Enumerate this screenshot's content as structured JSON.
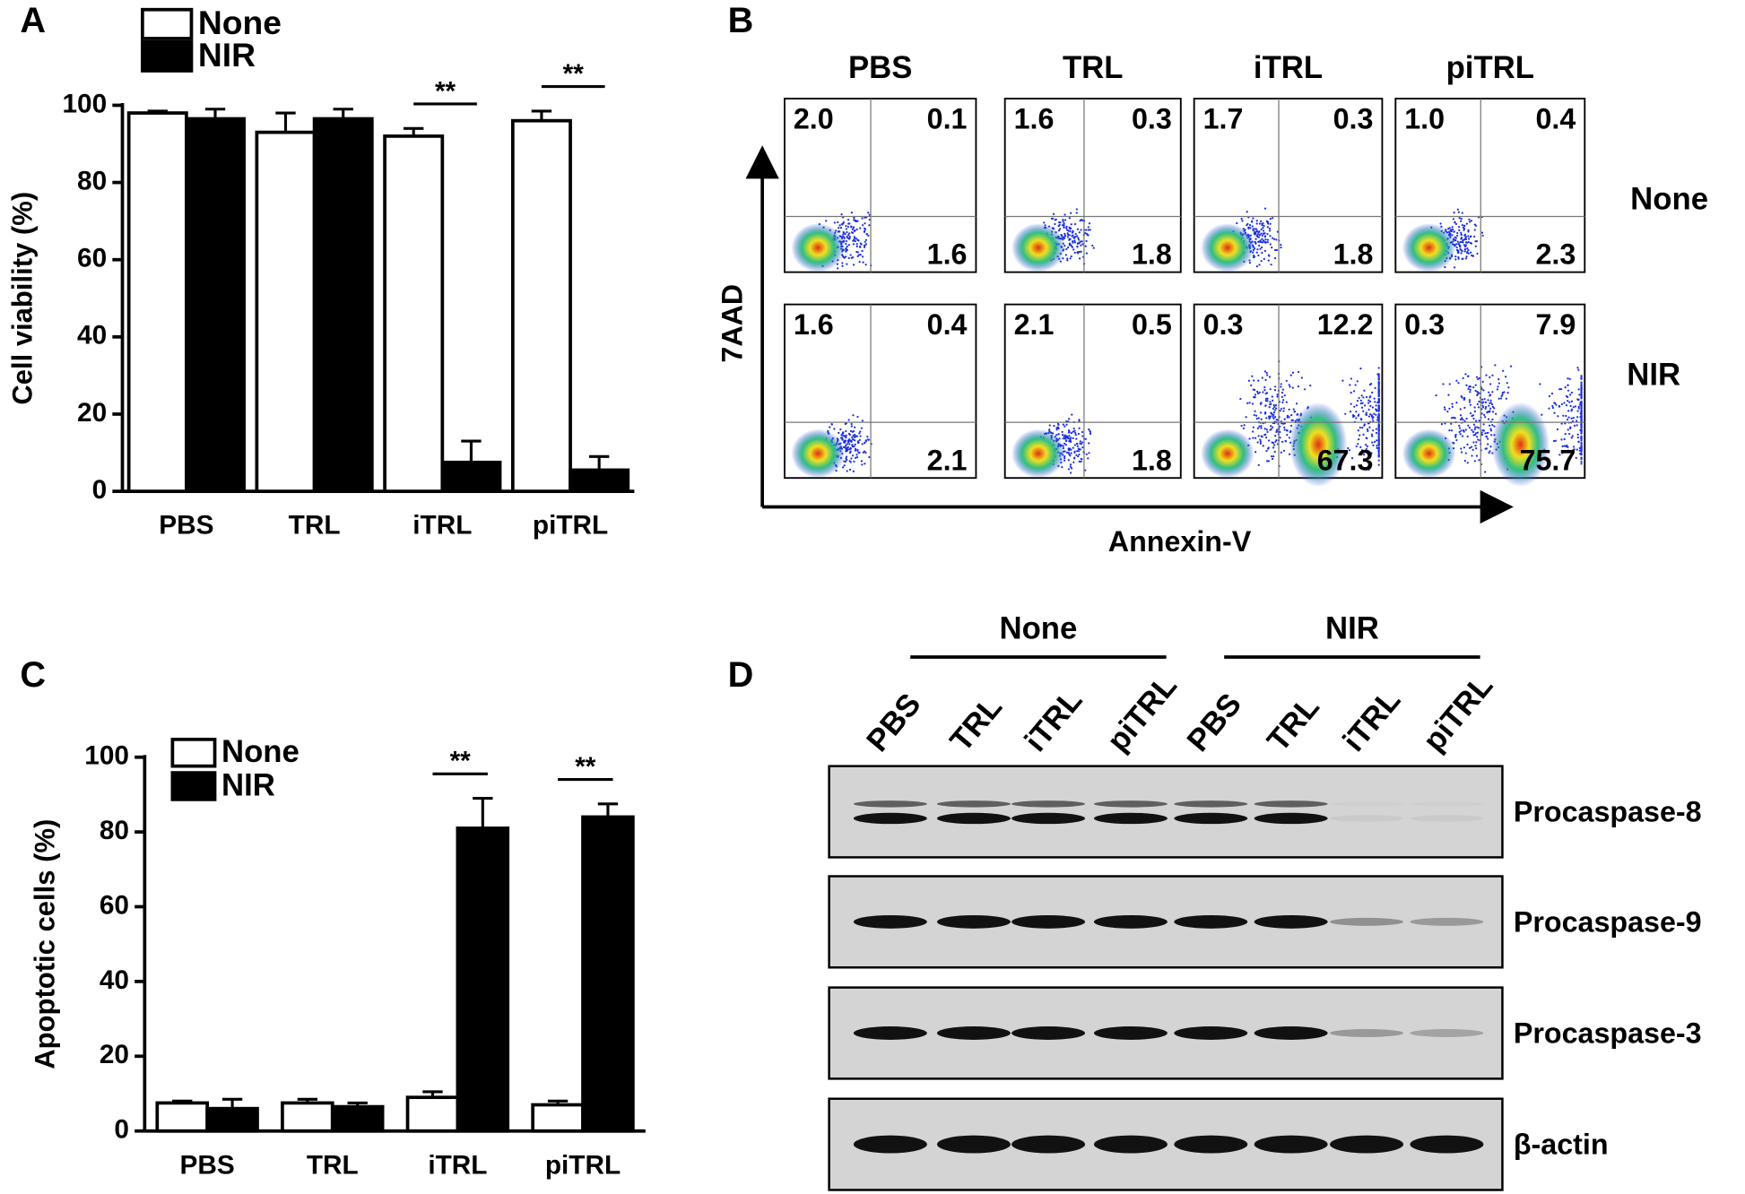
{
  "chart_data": [
    {
      "type": "bar",
      "panel_label": "A",
      "y_label": "Cell viability (%)",
      "categories": [
        "PBS",
        "TRL",
        "iTRL",
        "piTRL"
      ],
      "series": [
        {
          "name": "None",
          "color": "#ffffff",
          "values": [
            98,
            93,
            92,
            96
          ],
          "errors": [
            0.5,
            5,
            2,
            2.5
          ]
        },
        {
          "name": "NIR",
          "color": "#000000",
          "values": [
            96.5,
            96.5,
            7.5,
            5.5
          ],
          "errors": [
            2.5,
            2.5,
            5.5,
            3.5
          ]
        }
      ],
      "annotations": [
        null,
        null,
        "**",
        "**"
      ],
      "ylim": [
        0,
        100
      ],
      "yticks": [
        0,
        20,
        40,
        60,
        80,
        100
      ]
    },
    {
      "type": "bar",
      "panel_label": "C",
      "y_label": "Apoptotic cells (%)",
      "categories": [
        "PBS",
        "TRL",
        "iTRL",
        "piTRL"
      ],
      "series": [
        {
          "name": "None",
          "color": "#ffffff",
          "values": [
            7.5,
            7.5,
            9,
            7
          ],
          "errors": [
            0.5,
            1,
            1.5,
            1
          ]
        },
        {
          "name": "NIR",
          "color": "#000000",
          "values": [
            6,
            6.5,
            81,
            84
          ],
          "errors": [
            2.5,
            1,
            8,
            3.5
          ]
        }
      ],
      "annotations": [
        null,
        null,
        "**",
        "**"
      ],
      "ylim": [
        0,
        100
      ],
      "yticks": [
        0,
        20,
        40,
        60,
        80,
        100
      ]
    }
  ],
  "flow": {
    "panel_label": "B",
    "y_label": "7AAD",
    "x_label": "Annexin-V",
    "columns": [
      "PBS",
      "TRL",
      "iTRL",
      "piTRL"
    ],
    "rows": [
      {
        "label": "None",
        "quadrants": [
          [
            "2.0",
            "0.1",
            "1.6"
          ],
          [
            "1.6",
            "0.3",
            "1.8"
          ],
          [
            "1.7",
            "0.3",
            "1.8"
          ],
          [
            "1.0",
            "0.4",
            "2.3"
          ]
        ]
      },
      {
        "label": "NIR",
        "quadrants": [
          [
            "1.6",
            "0.4",
            "2.1"
          ],
          [
            "2.1",
            "0.5",
            "1.8"
          ],
          [
            "0.3",
            "12.2",
            "67.3"
          ],
          [
            "0.3",
            "7.9",
            "75.7"
          ]
        ]
      }
    ]
  },
  "western": {
    "panel_label": "D",
    "groups": [
      "None",
      "NIR"
    ],
    "lanes": [
      "PBS",
      "TRL",
      "iTRL",
      "piTRL",
      "PBS",
      "TRL",
      "iTRL",
      "piTRL"
    ],
    "proteins": [
      "Procaspase-8",
      "Procaspase-9",
      "Procaspase-3",
      "β-actin"
    ]
  }
}
